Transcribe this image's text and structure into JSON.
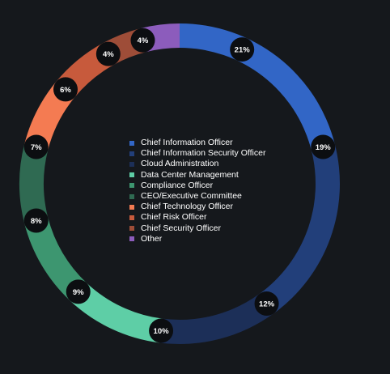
{
  "chart_data": {
    "type": "pie",
    "donut": true,
    "title": "",
    "legend_position": "center",
    "series": [
      {
        "name": "Chief Information Officer",
        "value": 21,
        "label": "21%",
        "color": "#3266c6"
      },
      {
        "name": "Chief Information Security Officer",
        "value": 19,
        "label": "19%",
        "color": "#223f7a"
      },
      {
        "name": "Cloud Administration",
        "value": 12,
        "label": "12%",
        "color": "#1c2f58"
      },
      {
        "name": "Data Center Management",
        "value": 10,
        "label": "10%",
        "color": "#5ecea6"
      },
      {
        "name": "Compliance Officer",
        "value": 9,
        "label": "9%",
        "color": "#3d9670"
      },
      {
        "name": "CEO/Executive Committee",
        "value": 8,
        "label": "8%",
        "color": "#2f6a52"
      },
      {
        "name": "Chief Technology Officer",
        "value": 7,
        "label": "7%",
        "color": "#f47b52"
      },
      {
        "name": "Chief Risk Officer",
        "value": 6,
        "label": "6%",
        "color": "#c75a3c"
      },
      {
        "name": "Chief Security Officer",
        "value": 4,
        "label": "4%",
        "color": "#9e4d38"
      },
      {
        "name": "Other",
        "value": 4,
        "label": "4%",
        "color": "#8c5cbc"
      }
    ]
  }
}
